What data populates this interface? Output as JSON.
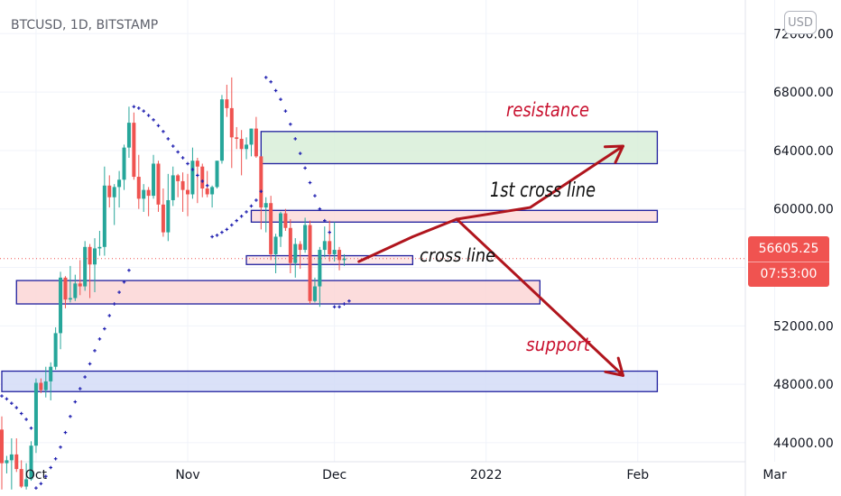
{
  "header": {
    "symbol_label": "BTCUSD, 1D, BITSTAMP"
  },
  "currency_badge": "USD",
  "last_price": {
    "value": "56605.25",
    "countdown": "07:53:00",
    "color": "#f05350"
  },
  "colors": {
    "up": "#26a69a",
    "down": "#ef5350",
    "sar": "#1f1fb0",
    "annotation_red": "#c8102e",
    "arrow": "#b0151d",
    "box_border": "#1f1f9e"
  },
  "chart_data": {
    "type": "candlestick",
    "title": "BTCUSD, 1D, BITSTAMP",
    "x_ticks": [
      "Oct",
      "Nov",
      "Dec",
      "2022",
      "Feb",
      "Mar"
    ],
    "y_ticks": [
      44000,
      48000,
      52000,
      56000,
      60000,
      64000,
      68000,
      72000
    ],
    "y_tick_labels": [
      "44000.00",
      "48000.00",
      "52000.00",
      "",
      "60000.00",
      "64000.00",
      "68000.00",
      "72000.00"
    ],
    "ylim": [
      42700,
      74300
    ],
    "date_range": [
      "2021-09-24",
      "2022-03-14"
    ],
    "last_close": 56605.25,
    "candles": [
      [
        "2021-09-24",
        44900,
        45800,
        40800,
        42600
      ],
      [
        "2021-09-25",
        42600,
        43100,
        41900,
        42800
      ],
      [
        "2021-09-26",
        42800,
        44300,
        40800,
        43200
      ],
      [
        "2021-09-27",
        43200,
        44300,
        42000,
        42200
      ],
      [
        "2021-09-28",
        42200,
        42800,
        40900,
        41000
      ],
      [
        "2021-09-29",
        41000,
        42600,
        40800,
        41500
      ],
      [
        "2021-09-30",
        41500,
        44100,
        41400,
        43800
      ],
      [
        "2021-10-01",
        43800,
        48400,
        43300,
        48100
      ],
      [
        "2021-10-02",
        48100,
        48400,
        47400,
        47600
      ],
      [
        "2021-10-03",
        47600,
        49200,
        47100,
        48200
      ],
      [
        "2021-10-04",
        48200,
        49500,
        46900,
        49200
      ],
      [
        "2021-10-05",
        49200,
        51900,
        49000,
        51500
      ],
      [
        "2021-10-06",
        51500,
        55700,
        50400,
        55300
      ],
      [
        "2021-10-07",
        55300,
        55400,
        53200,
        53800
      ],
      [
        "2021-10-08",
        53800,
        56100,
        53600,
        53900
      ],
      [
        "2021-10-09",
        53900,
        55500,
        53700,
        54900
      ],
      [
        "2021-10-10",
        54900,
        56500,
        54100,
        54700
      ],
      [
        "2021-10-11",
        54700,
        57800,
        54400,
        57400
      ],
      [
        "2021-10-12",
        57400,
        57600,
        53900,
        56200
      ],
      [
        "2021-10-13",
        56200,
        58000,
        54300,
        57300
      ],
      [
        "2021-10-14",
        57300,
        58500,
        56800,
        57400
      ],
      [
        "2021-10-15",
        57400,
        62900,
        56800,
        61600
      ],
      [
        "2021-10-16",
        61600,
        62300,
        60100,
        60800
      ],
      [
        "2021-10-17",
        60800,
        61700,
        58900,
        61500
      ],
      [
        "2021-10-18",
        61500,
        62600,
        60100,
        62000
      ],
      [
        "2021-10-19",
        62000,
        64400,
        61300,
        64200
      ],
      [
        "2021-10-20",
        64200,
        67000,
        63500,
        65900
      ],
      [
        "2021-10-21",
        65900,
        66600,
        62000,
        62200
      ],
      [
        "2021-10-22",
        62200,
        63700,
        60000,
        60700
      ],
      [
        "2021-10-23",
        60700,
        61700,
        59800,
        61300
      ],
      [
        "2021-10-24",
        61300,
        61500,
        59500,
        60900
      ],
      [
        "2021-10-25",
        60900,
        63700,
        60700,
        63100
      ],
      [
        "2021-10-26",
        63100,
        63300,
        59800,
        60300
      ],
      [
        "2021-10-27",
        60300,
        61400,
        58100,
        58400
      ],
      [
        "2021-10-28",
        58400,
        62400,
        57800,
        60600
      ],
      [
        "2021-10-29",
        60600,
        62900,
        60200,
        62300
      ],
      [
        "2021-10-30",
        62300,
        62400,
        60800,
        61900
      ],
      [
        "2021-10-31",
        61900,
        62500,
        59800,
        61300
      ],
      [
        "2021-11-01",
        61300,
        62400,
        59500,
        61000
      ],
      [
        "2021-11-02",
        61000,
        64200,
        60700,
        63300
      ],
      [
        "2021-11-03",
        63300,
        63500,
        60400,
        62900
      ],
      [
        "2021-11-04",
        62900,
        63100,
        60800,
        61400
      ],
      [
        "2021-11-05",
        61400,
        62600,
        60800,
        61000
      ],
      [
        "2021-11-06",
        61000,
        61600,
        60100,
        61500
      ],
      [
        "2021-11-07",
        61500,
        63300,
        61400,
        63300
      ],
      [
        "2021-11-08",
        63300,
        67800,
        63100,
        67500
      ],
      [
        "2021-11-09",
        67500,
        68500,
        66300,
        66900
      ],
      [
        "2021-11-10",
        66900,
        69000,
        62800,
        64900
      ],
      [
        "2021-11-11",
        64900,
        65600,
        64100,
        64800
      ],
      [
        "2021-11-12",
        64800,
        65400,
        62300,
        64100
      ],
      [
        "2021-11-13",
        64100,
        64900,
        63400,
        64400
      ],
      [
        "2021-11-14",
        64400,
        65500,
        63600,
        65500
      ],
      [
        "2021-11-15",
        65500,
        66300,
        63500,
        63600
      ],
      [
        "2021-11-16",
        63600,
        63600,
        58600,
        60100
      ],
      [
        "2021-11-17",
        60100,
        60800,
        58400,
        60400
      ],
      [
        "2021-11-18",
        60400,
        60900,
        56500,
        56900
      ],
      [
        "2021-11-19",
        56900,
        58300,
        55600,
        58100
      ],
      [
        "2021-11-20",
        58100,
        59800,
        57400,
        59700
      ],
      [
        "2021-11-21",
        59700,
        60000,
        58500,
        58700
      ],
      [
        "2021-11-22",
        58700,
        59300,
        55600,
        56300
      ],
      [
        "2021-11-23",
        56300,
        58000,
        55300,
        57600
      ],
      [
        "2021-11-24",
        57600,
        57800,
        55900,
        57200
      ],
      [
        "2021-11-25",
        57200,
        59400,
        57000,
        58900
      ],
      [
        "2021-11-26",
        58900,
        59200,
        53500,
        53700
      ],
      [
        "2021-11-27",
        53700,
        55300,
        53600,
        54700
      ],
      [
        "2021-11-28",
        54700,
        57400,
        53300,
        57200
      ],
      [
        "2021-11-29",
        57200,
        58800,
        56700,
        57800
      ],
      [
        "2021-11-30",
        57800,
        59200,
        56400,
        56900
      ],
      [
        "2021-12-01",
        56900,
        59100,
        56400,
        57200
      ],
      [
        "2021-12-02",
        57200,
        57400,
        55800,
        56500
      ],
      [
        "2021-12-03",
        56500,
        56900,
        56100,
        56605.25
      ]
    ],
    "parabolic_sar": [
      [
        "2021-09-24",
        47200
      ],
      [
        "2021-09-25",
        47000
      ],
      [
        "2021-09-26",
        46700
      ],
      [
        "2021-09-27",
        46400
      ],
      [
        "2021-09-28",
        46000
      ],
      [
        "2021-09-29",
        45600
      ],
      [
        "2021-09-30",
        45000
      ],
      [
        "2021-10-01",
        40900
      ],
      [
        "2021-10-02",
        41200
      ],
      [
        "2021-10-03",
        41700
      ],
      [
        "2021-10-04",
        42300
      ],
      [
        "2021-10-05",
        42900
      ],
      [
        "2021-10-06",
        43700
      ],
      [
        "2021-10-07",
        44700
      ],
      [
        "2021-10-08",
        45800
      ],
      [
        "2021-10-09",
        46800
      ],
      [
        "2021-10-10",
        47700
      ],
      [
        "2021-10-11",
        48500
      ],
      [
        "2021-10-12",
        49400
      ],
      [
        "2021-10-13",
        50300
      ],
      [
        "2021-10-14",
        51100
      ],
      [
        "2021-10-15",
        51800
      ],
      [
        "2021-10-16",
        52700
      ],
      [
        "2021-10-17",
        53500
      ],
      [
        "2021-10-18",
        54300
      ],
      [
        "2021-10-19",
        55000
      ],
      [
        "2021-10-20",
        55800
      ],
      [
        "2021-10-21",
        67000
      ],
      [
        "2021-10-22",
        66900
      ],
      [
        "2021-10-23",
        66700
      ],
      [
        "2021-10-24",
        66400
      ],
      [
        "2021-10-25",
        66100
      ],
      [
        "2021-10-26",
        65700
      ],
      [
        "2021-10-27",
        65300
      ],
      [
        "2021-10-28",
        64800
      ],
      [
        "2021-10-29",
        64300
      ],
      [
        "2021-10-30",
        63900
      ],
      [
        "2021-10-31",
        63500
      ],
      [
        "2021-11-01",
        63100
      ],
      [
        "2021-11-02",
        62700
      ],
      [
        "2021-11-03",
        62300
      ],
      [
        "2021-11-04",
        61900
      ],
      [
        "2021-11-05",
        61600
      ],
      [
        "2021-11-06",
        58100
      ],
      [
        "2021-11-07",
        58200
      ],
      [
        "2021-11-08",
        58400
      ],
      [
        "2021-11-09",
        58600
      ],
      [
        "2021-11-10",
        58900
      ],
      [
        "2021-11-11",
        59200
      ],
      [
        "2021-11-12",
        59500
      ],
      [
        "2021-11-13",
        59800
      ],
      [
        "2021-11-14",
        60200
      ],
      [
        "2021-11-15",
        60600
      ],
      [
        "2021-11-16",
        61200
      ],
      [
        "2021-11-17",
        69000
      ],
      [
        "2021-11-18",
        68700
      ],
      [
        "2021-11-19",
        68100
      ],
      [
        "2021-11-20",
        67500
      ],
      [
        "2021-11-21",
        66700
      ],
      [
        "2021-11-22",
        65800
      ],
      [
        "2021-11-23",
        64800
      ],
      [
        "2021-11-24",
        63800
      ],
      [
        "2021-11-25",
        62800
      ],
      [
        "2021-11-26",
        61800
      ],
      [
        "2021-11-27",
        60900
      ],
      [
        "2021-11-28",
        60000
      ],
      [
        "2021-11-29",
        59200
      ],
      [
        "2021-11-30",
        58400
      ],
      [
        "2021-12-01",
        53300
      ],
      [
        "2021-12-02",
        53300
      ],
      [
        "2021-12-03",
        53500
      ],
      [
        "2021-12-04",
        53700
      ]
    ],
    "annotations": {
      "labels": [
        {
          "id": "resistance",
          "text": "resistance"
        },
        {
          "id": "first_cross",
          "text": "1st cross line"
        },
        {
          "id": "cross",
          "text": "cross line"
        },
        {
          "id": "support",
          "text": "support"
        }
      ],
      "zones": [
        {
          "id": "resistance-zone",
          "from": "2021-11-16",
          "to": "2022-02-05",
          "top": 65300,
          "bottom": 63100,
          "fill": "#d8efd8"
        },
        {
          "id": "first-cross-zone",
          "from": "2021-11-14",
          "to": "2022-02-05",
          "top": 59900,
          "bottom": 59100,
          "fill": "#fbdada"
        },
        {
          "id": "cross-zone",
          "from": "2021-11-13",
          "to": "2021-12-17",
          "top": 56800,
          "bottom": 56200,
          "fill": "#fbe4e4"
        },
        {
          "id": "lower-zone",
          "from": "2021-09-27",
          "to": "2022-01-12",
          "top": 55100,
          "bottom": 53500,
          "fill": "#fbd6d6"
        },
        {
          "id": "support-zone",
          "from": "2021-09-24",
          "to": "2022-02-05",
          "top": 48900,
          "bottom": 47500,
          "fill": "#d3dcf7"
        }
      ],
      "arrows": [
        {
          "id": "arrow-up",
          "points": [
            [
              "2021-12-06",
              56400
            ],
            [
              "2021-12-17",
              58100
            ],
            [
              "2021-12-26",
              59300
            ],
            [
              "2022-01-10",
              60100
            ],
            [
              "2022-01-29",
              64300
            ]
          ]
        },
        {
          "id": "arrow-down",
          "points": [
            [
              "2021-12-26",
              59300
            ],
            [
              "2022-01-29",
              48600
            ]
          ]
        }
      ]
    }
  }
}
